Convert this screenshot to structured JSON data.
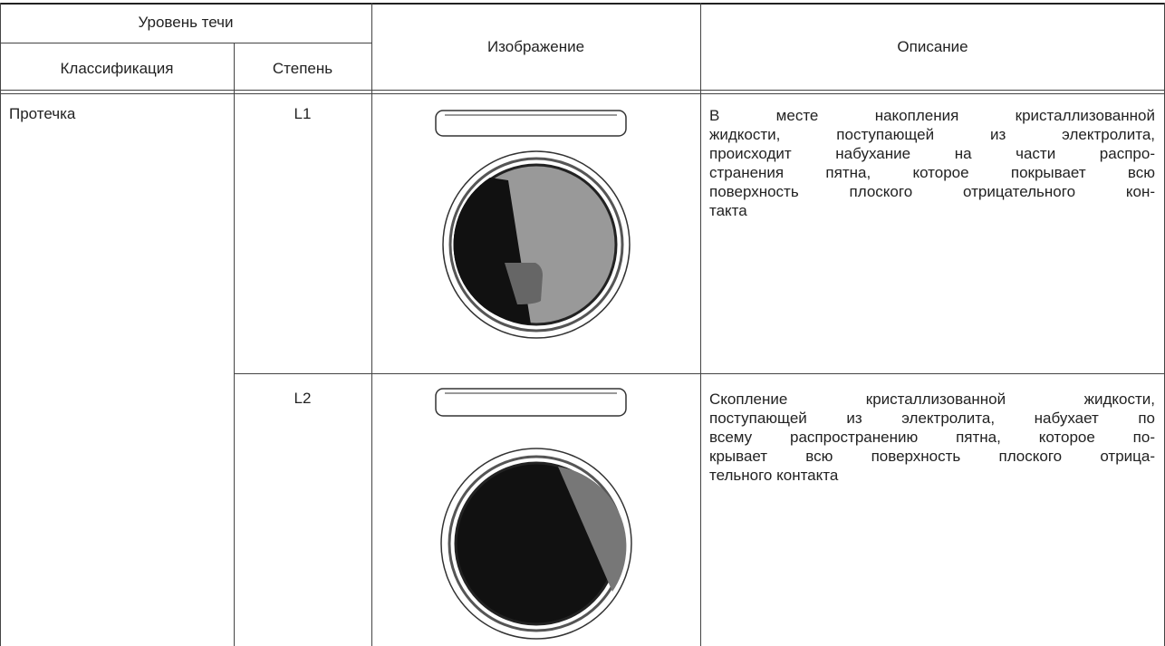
{
  "header": {
    "level": "Уровень течи",
    "classification": "Классификация",
    "degree": "Степень",
    "image": "Изображение",
    "description": "Описание"
  },
  "rows": [
    {
      "classification": "Протечка",
      "degree": "L1",
      "description_lines": [
        "В месте накопления кристаллизованной",
        "жидкости, поступающей из электролита,",
        "происходит набухание на части распро-",
        "странения пятна, которое покрывает всю",
        "поверхность плоского отрицательного кон-",
        "такта"
      ]
    },
    {
      "degree": "L2",
      "description_lines": [
        "Скопление кристаллизованной жидкости,",
        "поступающей из электролита, набухает по",
        "всему распространению пятна, которое по-",
        "крывает всю поверхность плоского отрица-",
        "тельного контакта"
      ]
    }
  ]
}
